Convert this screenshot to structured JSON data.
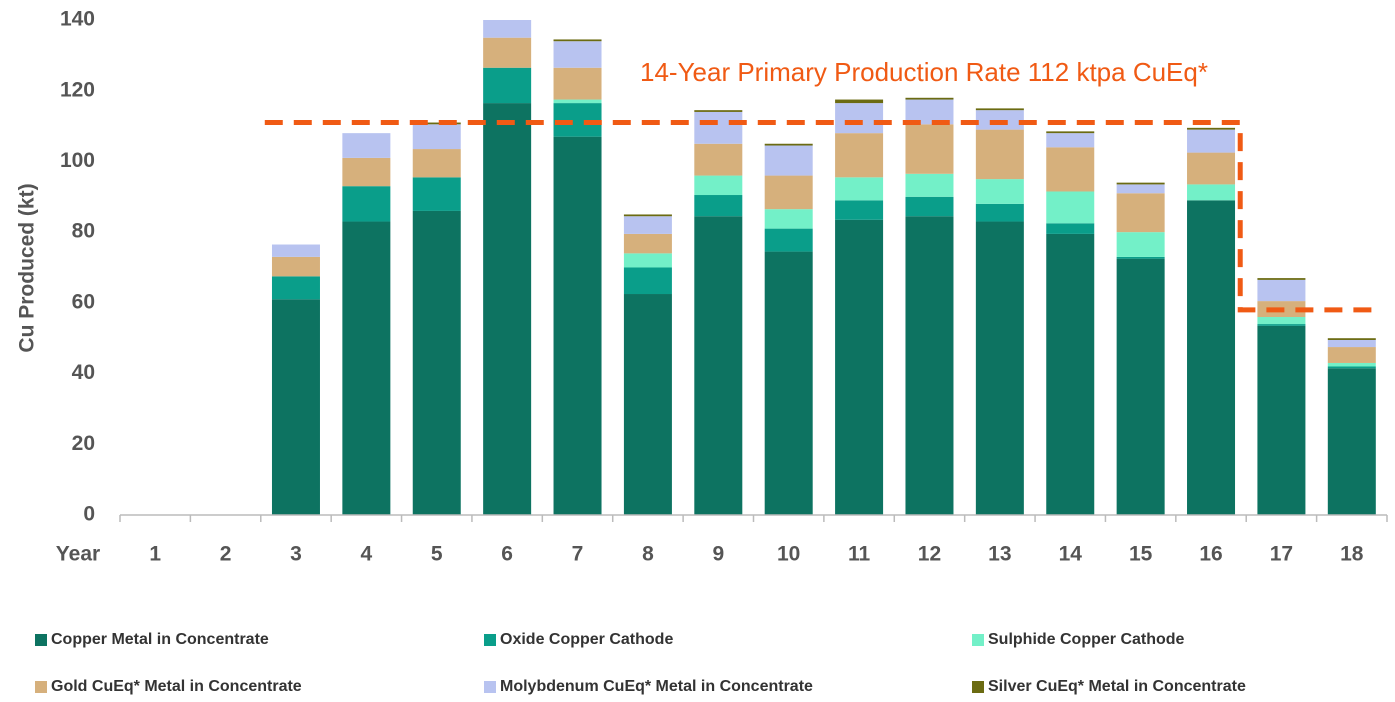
{
  "chart_data": {
    "type": "stacked_bar",
    "y_label": "Cu Produced (kt)",
    "x_label": "Year",
    "categories": [
      "1",
      "2",
      "3",
      "4",
      "5",
      "6",
      "7",
      "8",
      "9",
      "10",
      "11",
      "12",
      "13",
      "14",
      "15",
      "16",
      "17",
      "18"
    ],
    "series": [
      {
        "name": "Copper Metal in Concentrate",
        "color": "#0d7361",
        "values": [
          0,
          0,
          61,
          83,
          86,
          116.5,
          107,
          62.5,
          84.5,
          74.5,
          83.5,
          84.5,
          83,
          79.5,
          72.5,
          89,
          53.5,
          41.5
        ]
      },
      {
        "name": "Oxide Copper Cathode",
        "color": "#0a9e8a",
        "values": [
          0,
          0,
          6.5,
          10,
          9.5,
          10,
          9.5,
          7.5,
          6,
          6.5,
          5.5,
          5.5,
          5,
          3,
          0.5,
          0,
          0.5,
          0.5
        ]
      },
      {
        "name": "Sulphide Copper Cathode",
        "color": "#73f0c8",
        "values": [
          0,
          0,
          0,
          0,
          0,
          0,
          1,
          4,
          5.5,
          5.5,
          6.5,
          6.5,
          7,
          9,
          7,
          4.5,
          2,
          1
        ]
      },
      {
        "name": "Gold CuEq* Metal in Concentrate",
        "color": "#d6b07c",
        "values": [
          0,
          0,
          5.5,
          8,
          8,
          8.5,
          9,
          5.5,
          9,
          9.5,
          12.5,
          14,
          14,
          12.5,
          11,
          9,
          4.5,
          4.5
        ]
      },
      {
        "name": "Molybdenum CuEq* Metal in Concentrate",
        "color": "#b8c3f0",
        "values": [
          0,
          0,
          3.5,
          7,
          7,
          7,
          7.5,
          5,
          9,
          8.5,
          8.5,
          7,
          5.5,
          4,
          2.5,
          6.5,
          6,
          2
        ]
      },
      {
        "name": "Silver CuEq* Metal in Concentrate",
        "color": "#6b6b12",
        "values": [
          0,
          0,
          0,
          0,
          0.5,
          0.5,
          0.5,
          0.5,
          0.5,
          0.5,
          1,
          0.5,
          0.5,
          0.5,
          0.5,
          0.5,
          0.5,
          0.5
        ]
      }
    ],
    "ylim": [
      0,
      140
    ],
    "yticks": [
      0,
      20,
      40,
      60,
      80,
      100,
      120,
      140
    ],
    "annotation": {
      "text": "14-Year Primary Production Rate 112 ktpa CuEq*",
      "color": "#f05a14",
      "levels": [
        111,
        58
      ]
    }
  }
}
